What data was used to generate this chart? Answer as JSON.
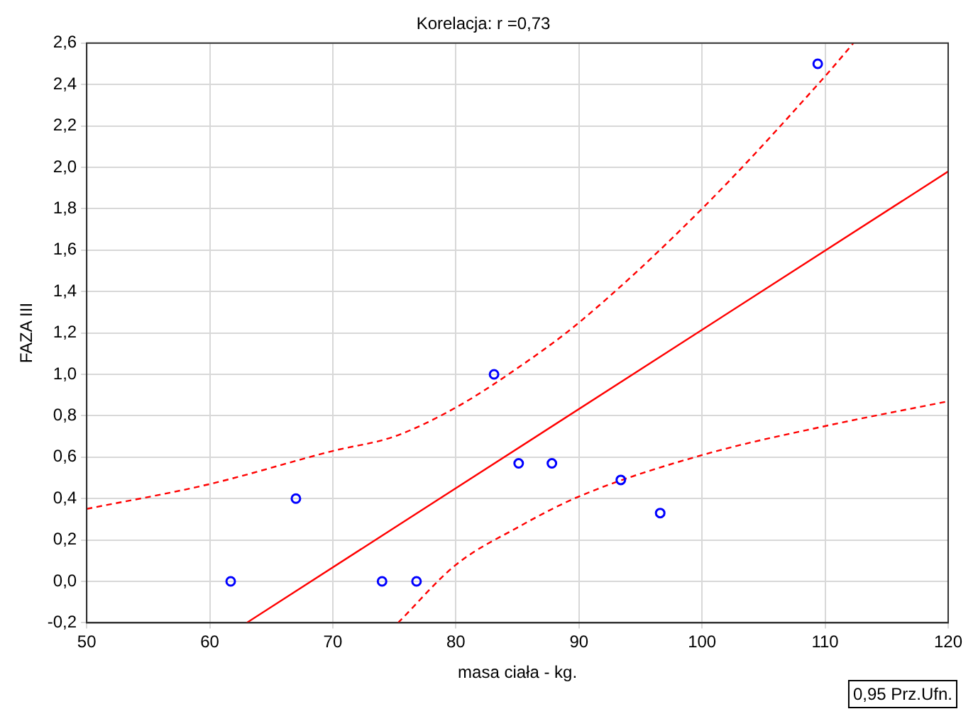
{
  "chart_data": {
    "type": "scatter",
    "title": "Korelacja: r =0,73",
    "xlabel": "masa ciała - kg.",
    "ylabel": "FAZA III",
    "xlim": [
      50,
      120
    ],
    "xticks": [
      50,
      60,
      70,
      80,
      90,
      100,
      110,
      120
    ],
    "ylim": [
      -0.2,
      2.6
    ],
    "yticks": [
      {
        "value": -0.2,
        "label": "-0,2"
      },
      {
        "value": 0,
        "label": "0,0"
      },
      {
        "value": 0.2,
        "label": "0,2"
      },
      {
        "value": 0.4,
        "label": "0,4"
      },
      {
        "value": 0.6,
        "label": "0,6"
      },
      {
        "value": 0.8,
        "label": "0,8"
      },
      {
        "value": 1.0,
        "label": "1,0"
      },
      {
        "value": 1.2,
        "label": "1,2"
      },
      {
        "value": 1.4,
        "label": "1,4"
      },
      {
        "value": 1.6,
        "label": "1,6"
      },
      {
        "value": 1.8,
        "label": "1,8"
      },
      {
        "value": 2.0,
        "label": "2,0"
      },
      {
        "value": 2.2,
        "label": "2,2"
      },
      {
        "value": 2.4,
        "label": "2,4"
      },
      {
        "value": 2.6,
        "label": "2,6"
      }
    ],
    "grid": true,
    "legend": false,
    "series": [
      {
        "type": "scatter",
        "color": "#0000ff",
        "marker": "circle",
        "x": [
          61.7,
          67.0,
          74.0,
          76.8,
          83.1,
          85.1,
          87.8,
          93.4,
          96.6,
          109.4
        ],
        "values": [
          0.0,
          0.4,
          0.0,
          0.0,
          1.0,
          0.57,
          0.57,
          0.49,
          0.33,
          2.5
        ]
      },
      {
        "type": "line",
        "color": "#ff0000",
        "line_style": "solid",
        "x": [
          63,
          120
        ],
        "values": [
          -0.2,
          1.98
        ]
      },
      {
        "type": "line",
        "color": "#ff0000",
        "line_style": "dashed",
        "x": [
          50,
          60,
          70,
          75,
          80,
          85,
          90,
          100,
          110,
          112.3
        ],
        "values": [
          0.35,
          0.47,
          0.63,
          0.7,
          0.84,
          1.03,
          1.25,
          1.8,
          2.44,
          2.6
        ]
      },
      {
        "type": "line",
        "color": "#ff0000",
        "line_style": "dashed",
        "x": [
          75.3,
          80,
          85,
          90,
          100,
          110,
          120
        ],
        "values": [
          -0.2,
          0.08,
          0.26,
          0.41,
          0.61,
          0.75,
          0.87
        ]
      }
    ],
    "annotations": [
      "0,95 Prz.Ufn."
    ]
  }
}
